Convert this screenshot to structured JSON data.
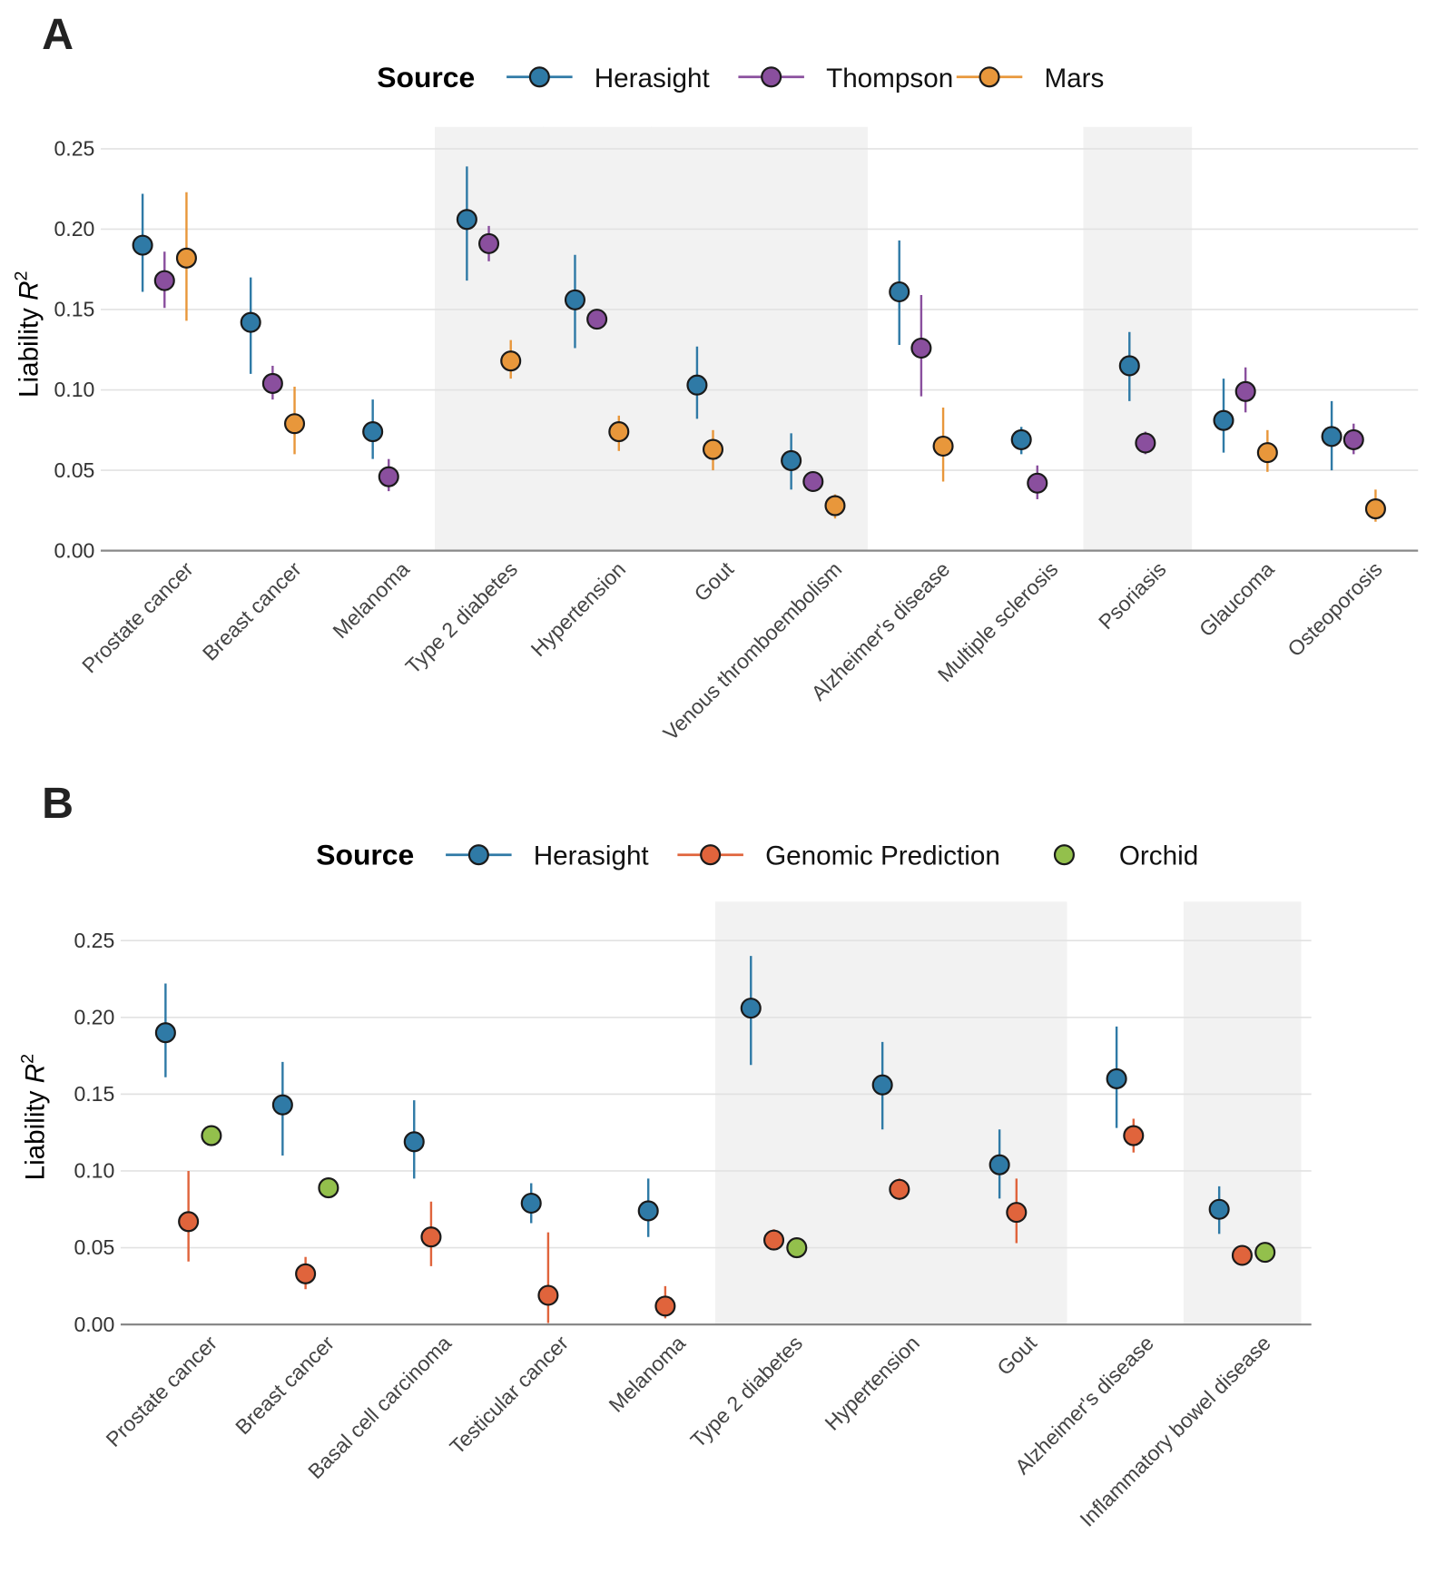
{
  "chart_data": [
    {
      "panel": "A",
      "type": "scatter",
      "ylabel": {
        "text": "Liability ",
        "italic": "R",
        "sup": "2"
      },
      "ylim": [
        0,
        0.25
      ],
      "yticks": [
        "0.00",
        "0.05",
        "0.10",
        "0.15",
        "0.20",
        "0.25"
      ],
      "grid": true,
      "legend": {
        "title": "Source",
        "placement": "top"
      },
      "categories": [
        "Prostate cancer",
        "Breast cancer",
        "Melanoma",
        "Type 2 diabetes",
        "Hypertension",
        "Gout",
        "Venous thromboembolism",
        "Alzheimer's disease",
        "Multiple sclerosis",
        "Psoriasis",
        "Glaucoma",
        "Osteoporosis"
      ],
      "shaded_categories": [
        "Type 2 diabetes",
        "Hypertension",
        "Gout",
        "Venous thromboembolism",
        "Psoriasis"
      ],
      "series": [
        {
          "name": "Herasight",
          "color": "#2f7aa6",
          "errorbars": true,
          "values": [
            [
              0.19,
              0.161,
              0.222
            ],
            [
              0.142,
              0.11,
              0.17
            ],
            [
              0.074,
              0.057,
              0.094
            ],
            [
              0.206,
              0.168,
              0.239
            ],
            [
              0.156,
              0.126,
              0.184
            ],
            [
              0.103,
              0.082,
              0.127
            ],
            [
              0.056,
              0.038,
              0.073
            ],
            [
              0.161,
              0.128,
              0.193
            ],
            [
              0.069,
              0.06,
              0.077
            ],
            [
              0.115,
              0.093,
              0.136
            ],
            [
              0.081,
              0.061,
              0.107
            ],
            [
              0.071,
              0.05,
              0.093
            ]
          ]
        },
        {
          "name": "Thompson",
          "color": "#8a4f9e",
          "errorbars": true,
          "values": [
            [
              0.168,
              0.151,
              0.186
            ],
            [
              0.104,
              0.094,
              0.115
            ],
            [
              0.046,
              0.037,
              0.057
            ],
            [
              0.191,
              0.18,
              0.202
            ],
            [
              0.144,
              0.142,
              0.146
            ],
            null,
            [
              0.043,
              0.041,
              0.045
            ],
            [
              0.126,
              0.096,
              0.159
            ],
            [
              0.042,
              0.032,
              0.053
            ],
            [
              0.067,
              0.06,
              0.074
            ],
            [
              0.099,
              0.086,
              0.114
            ],
            [
              0.069,
              0.06,
              0.079
            ]
          ]
        },
        {
          "name": "Mars",
          "color": "#e8973b",
          "errorbars": true,
          "values": [
            [
              0.182,
              0.143,
              0.223
            ],
            [
              0.079,
              0.06,
              0.102
            ],
            null,
            [
              0.118,
              0.107,
              0.131
            ],
            [
              0.074,
              0.062,
              0.084
            ],
            [
              0.063,
              0.05,
              0.075
            ],
            [
              0.028,
              0.02,
              0.035
            ],
            [
              0.065,
              0.043,
              0.089
            ],
            null,
            null,
            [
              0.061,
              0.049,
              0.075
            ],
            [
              0.026,
              0.018,
              0.038
            ]
          ]
        }
      ]
    },
    {
      "panel": "B",
      "type": "scatter",
      "ylabel": {
        "text": "Liability ",
        "italic": "R",
        "sup": "2"
      },
      "ylim": [
        0,
        0.25
      ],
      "yticks": [
        "0.00",
        "0.05",
        "0.10",
        "0.15",
        "0.20",
        "0.25"
      ],
      "grid": true,
      "legend": {
        "title": "Source",
        "placement": "top"
      },
      "categories": [
        "Prostate cancer",
        "Breast cancer",
        "Basal cell carcinoma",
        "Testicular cancer",
        "Melanoma",
        "Type 2 diabetes",
        "Hypertension",
        "Gout",
        "Alzheimer's disease",
        "Inflammatory bowel disease"
      ],
      "shaded_categories": [
        "Type 2 diabetes",
        "Hypertension",
        "Gout",
        "Inflammatory bowel disease"
      ],
      "series": [
        {
          "name": "Herasight",
          "color": "#2f7aa6",
          "errorbars": true,
          "values": [
            [
              0.19,
              0.161,
              0.222
            ],
            [
              0.143,
              0.11,
              0.171
            ],
            [
              0.119,
              0.095,
              0.146
            ],
            [
              0.079,
              0.066,
              0.092
            ],
            [
              0.074,
              0.057,
              0.095
            ],
            [
              0.206,
              0.169,
              0.24
            ],
            [
              0.156,
              0.127,
              0.184
            ],
            [
              0.104,
              0.082,
              0.127
            ],
            [
              0.16,
              0.128,
              0.194
            ],
            [
              0.075,
              0.059,
              0.09
            ]
          ]
        },
        {
          "name": "Genomic Prediction",
          "color": "#e0643c",
          "errorbars": true,
          "values": [
            [
              0.067,
              0.041,
              0.1
            ],
            [
              0.033,
              0.023,
              0.044
            ],
            [
              0.057,
              0.038,
              0.08
            ],
            [
              0.019,
              0.001,
              0.06
            ],
            [
              0.012,
              0.004,
              0.025
            ],
            [
              0.055,
              0.049,
              0.062
            ],
            [
              0.088,
              0.081,
              0.095
            ],
            [
              0.073,
              0.053,
              0.095
            ],
            [
              0.123,
              0.112,
              0.134
            ],
            [
              0.045,
              0.045,
              0.045
            ]
          ]
        },
        {
          "name": "Orchid",
          "color": "#93c04c",
          "errorbars": false,
          "values": [
            [
              0.123,
              0.123,
              0.123
            ],
            [
              0.089,
              0.089,
              0.089
            ],
            null,
            null,
            null,
            [
              0.05,
              0.05,
              0.05
            ],
            null,
            null,
            null,
            [
              0.047,
              0.047,
              0.047
            ]
          ]
        }
      ]
    }
  ]
}
